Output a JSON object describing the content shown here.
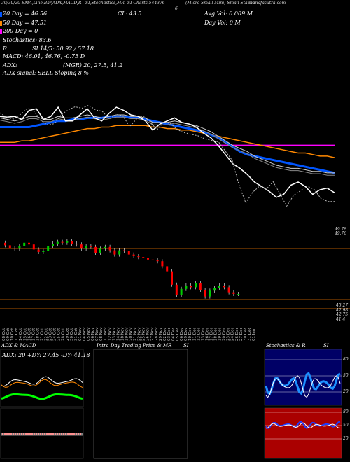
{
  "header": {
    "line1": "30/30/20 EMA,Line,Bar,ADX,MACD,R",
    "line1b": "SI,Stochastics,MR",
    "line1c": "SI Charts 544376",
    "line1d": "6",
    "line1e": "(Micro  Small Mini) Small Stakes",
    "url": "munafasutra.com",
    "cl": "CL: 43.5",
    "avg_vol": "Avg Vol: 0.009  M",
    "day_vol": "Day Vol: 0   M",
    "ema20": "20  Day = 46.56",
    "ema50": "50  Day = 47.51",
    "ema200": "200  Day = 0",
    "stoch": "Stochastics: 83.6",
    "rsi": "SI 14/5: 50.92 / 57.18",
    "r_label": "R",
    "macd": "MACD: 46.01, 46.76, -0.75 D",
    "adx": "ADX:",
    "mgr": "(MGR) 20, 27.5, 41.2",
    "adx_signal": "ADX  signal: SELL Sloping 8 %"
  },
  "candles_price_labels": {
    "top": "49.78",
    "top2": "49.76",
    "low1": "45.27",
    "low2": "42.98",
    "low3": "42.75",
    "low4": "41.4"
  },
  "date_labels": [
    "08 Oct",
    "09 Oct",
    "10 Oct",
    "11 Oct",
    "14 Oct",
    "15 Oct",
    "16 Oct",
    "17 Oct",
    "18 Oct",
    "21 Oct",
    "22 Oct",
    "23 Oct",
    "24 Oct",
    "25 Oct",
    "28 Oct",
    "29 Oct",
    "30 Oct",
    "31 Oct",
    "01 Nov",
    "04 Nov",
    "05 Nov",
    "06 Nov",
    "07 Nov",
    "08 Nov",
    "11 Nov",
    "12 Nov",
    "13 Nov",
    "14 Nov",
    "18 Nov",
    "19 Nov",
    "20 Nov",
    "21 Nov",
    "22 Nov",
    "25 Nov",
    "26 Nov",
    "27 Nov",
    "28 Nov",
    "29 Nov",
    "02 Dec",
    "03 Dec",
    "04 Dec",
    "05 Dec",
    "06 Dec",
    "09 Dec",
    "10 Dec",
    "11 Dec",
    "12 Dec",
    "13 Dec",
    "16 Dec",
    "17 Dec",
    "18 Dec",
    "19 Dec",
    "20 Dec",
    "23 Dec",
    "24 Dec",
    "26 Dec",
    "27 Dec",
    "30 Dec",
    "31 Dec",
    "01 Jan"
  ],
  "panels": {
    "adx_title": "ADX  & MACD",
    "adx_values": "ADX: 20  +DY: 27.45  -DY: 41.18",
    "intraday_title": "Intra  Day Trading Price  & MR",
    "intraday_si": "SI",
    "stoch_title": "Stochastics  & R",
    "stoch_si": "SI",
    "stoch_ticks": [
      "80",
      "50",
      "20"
    ],
    "rsi_ticks": [
      "80",
      "50",
      "20"
    ]
  },
  "colors": {
    "bg": "#000000",
    "ema_short": "#ffffff",
    "ema_blue": "#0055ff",
    "ema_orange": "#ff8800",
    "ema_magenta": "#ff00ff",
    "up_candle": "#00cc00",
    "down_candle": "#ff0000",
    "stoch_bg": "#000066",
    "rsi_bg": "#aa0000"
  },
  "chart_data": {
    "type": "line",
    "title": "",
    "close": [
      49.3,
      49.0,
      48.9,
      49.2,
      49.6,
      49.4,
      48.8,
      48.5,
      48.6,
      49.2,
      49.5,
      49.7,
      49.6,
      49.8,
      49.5,
      49.4,
      48.9,
      49.2,
      49.1,
      48.4,
      48.9,
      49.1,
      48.7,
      48.2,
      48.7,
      48.6,
      48.2,
      48.0,
      47.9,
      47.8,
      47.6,
      47.5,
      47.4,
      46.8,
      46.2,
      44.6,
      43.4,
      44.1,
      44.5,
      44.3,
      44.8,
      44.0,
      43.2,
      43.9,
      44.2,
      44.5,
      44.3,
      43.7,
      43.5,
      43.5
    ],
    "ema_short": [
      49.3,
      49.25,
      49.3,
      49.1,
      49.7,
      49.8,
      49.1,
      49.3,
      49.9,
      49.0,
      49.0,
      49.4,
      49.8,
      49.2,
      49.0,
      49.5,
      49.9,
      49.7,
      49.4,
      49.3,
      49.0,
      48.4,
      48.8,
      49.0,
      49.2,
      48.9,
      48.8,
      48.6,
      48.2,
      47.9,
      47.4,
      46.8,
      46.2,
      45.9,
      45.5,
      45.0,
      44.7,
      44.4,
      44.0,
      44.2,
      44.8,
      45.0,
      44.7,
      44.2,
      44.5,
      44.6,
      44.3
    ],
    "ema_slow": [
      49.2,
      49.1,
      49.0,
      49.1,
      49.3,
      49.3,
      49.1,
      49.1,
      49.3,
      49.2,
      49.2,
      49.3,
      49.4,
      49.3,
      49.2,
      49.3,
      49.4,
      49.4,
      49.3,
      49.3,
      49.2,
      48.9,
      48.9,
      48.9,
      49.0,
      48.9,
      48.8,
      48.7,
      48.5,
      48.3,
      48.0,
      47.7,
      47.4,
      47.2,
      47.0,
      46.7,
      46.5,
      46.3,
      46.1,
      46.0,
      45.9,
      45.9,
      45.8,
      45.7,
      45.7,
      45.6,
      45.6
    ],
    "ema_blue": [
      48.6,
      48.6,
      48.6,
      48.6,
      48.6,
      48.7,
      48.8,
      48.9,
      49.0,
      49.0,
      49.1,
      49.1,
      49.2,
      49.2,
      49.2,
      49.3,
      49.3,
      49.3,
      49.2,
      49.2,
      49.1,
      49.0,
      48.9,
      48.8,
      48.7,
      48.6,
      48.5,
      48.4,
      48.3,
      48.1,
      47.9,
      47.6,
      47.3,
      47.0,
      46.8,
      46.7,
      46.6,
      46.5,
      46.4,
      46.3,
      46.2,
      46.1,
      46.0,
      45.9,
      45.8,
      45.7,
      45.6
    ],
    "ema_orange": [
      47.6,
      47.6,
      47.6,
      47.7,
      47.7,
      47.8,
      47.9,
      48.0,
      48.1,
      48.2,
      48.3,
      48.4,
      48.5,
      48.5,
      48.6,
      48.6,
      48.7,
      48.7,
      48.7,
      48.7,
      48.7,
      48.6,
      48.6,
      48.5,
      48.5,
      48.4,
      48.4,
      48.3,
      48.2,
      48.1,
      48.0,
      47.9,
      47.8,
      47.7,
      47.6,
      47.5,
      47.4,
      47.3,
      47.2,
      47.1,
      47.0,
      46.9,
      46.9,
      46.8,
      46.7,
      46.7,
      46.6
    ],
    "ema_magenta": 47.4,
    "ylim": [
      42,
      52
    ]
  }
}
